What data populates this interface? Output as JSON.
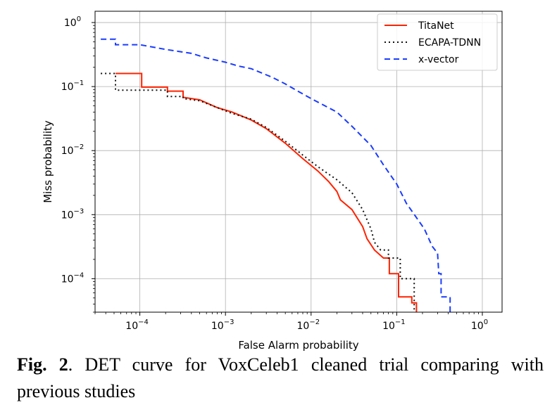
{
  "chart_data": {
    "type": "line",
    "xlabel": "False Alarm probability",
    "ylabel": "Miss probability",
    "xscale": "log",
    "yscale": "log",
    "xlim": [
      3e-05,
      1.7
    ],
    "ylim": [
      3e-05,
      1.5
    ],
    "x_ticks": [
      {
        "value": 0.0001,
        "base": "10",
        "exp": "−4"
      },
      {
        "value": 0.001,
        "base": "10",
        "exp": "−3"
      },
      {
        "value": 0.01,
        "base": "10",
        "exp": "−2"
      },
      {
        "value": 0.1,
        "base": "10",
        "exp": "−1"
      },
      {
        "value": 1,
        "base": "10",
        "exp": "0"
      }
    ],
    "y_ticks": [
      {
        "value": 1,
        "base": "10",
        "exp": "0"
      },
      {
        "value": 0.1,
        "base": "10",
        "exp": "−1"
      },
      {
        "value": 0.01,
        "base": "10",
        "exp": "−2"
      },
      {
        "value": 0.001,
        "base": "10",
        "exp": "−3"
      },
      {
        "value": 0.0001,
        "base": "10",
        "exp": "−4"
      }
    ],
    "grid": true,
    "legend_position": "top-right",
    "series": [
      {
        "name": "TitaNet",
        "color": "#ff2200",
        "style": "solid",
        "points": [
          [
            5.2e-05,
            0.16
          ],
          [
            0.000105,
            0.16
          ],
          [
            0.000105,
            0.098
          ],
          [
            0.00021,
            0.098
          ],
          [
            0.00021,
            0.085
          ],
          [
            0.00032,
            0.085
          ],
          [
            0.00032,
            0.068
          ],
          [
            0.0005,
            0.062
          ],
          [
            0.0008,
            0.047
          ],
          [
            0.0012,
            0.04
          ],
          [
            0.002,
            0.03
          ],
          [
            0.003,
            0.022
          ],
          [
            0.005,
            0.013
          ],
          [
            0.008,
            0.0075
          ],
          [
            0.012,
            0.0048
          ],
          [
            0.016,
            0.0033
          ],
          [
            0.02,
            0.0023
          ],
          [
            0.022,
            0.0017
          ],
          [
            0.03,
            0.0012
          ],
          [
            0.04,
            0.00065
          ],
          [
            0.045,
            0.00042
          ],
          [
            0.055,
            0.00028
          ],
          [
            0.07,
            0.00021
          ],
          [
            0.082,
            0.00021
          ],
          [
            0.082,
            0.00012
          ],
          [
            0.105,
            0.00012
          ],
          [
            0.105,
            5.2e-05
          ],
          [
            0.15,
            5.2e-05
          ],
          [
            0.15,
            4.2e-05
          ],
          [
            0.17,
            4.2e-05
          ],
          [
            0.17,
            3e-05
          ]
        ]
      },
      {
        "name": "ECAPA-TDNN",
        "color": "#111111",
        "style": "dotted",
        "points": [
          [
            3.5e-05,
            0.16
          ],
          [
            5.2e-05,
            0.16
          ],
          [
            5.2e-05,
            0.088
          ],
          [
            0.00021,
            0.088
          ],
          [
            0.00021,
            0.07
          ],
          [
            0.00032,
            0.07
          ],
          [
            0.00032,
            0.065
          ],
          [
            0.0005,
            0.06
          ],
          [
            0.0008,
            0.047
          ],
          [
            0.0012,
            0.038
          ],
          [
            0.002,
            0.031
          ],
          [
            0.003,
            0.023
          ],
          [
            0.005,
            0.014
          ],
          [
            0.008,
            0.0085
          ],
          [
            0.012,
            0.0056
          ],
          [
            0.02,
            0.0035
          ],
          [
            0.03,
            0.0022
          ],
          [
            0.04,
            0.0012
          ],
          [
            0.05,
            0.0006
          ],
          [
            0.055,
            0.00037
          ],
          [
            0.065,
            0.00028
          ],
          [
            0.08,
            0.00028
          ],
          [
            0.08,
            0.00021
          ],
          [
            0.11,
            0.00021
          ],
          [
            0.11,
            0.0001
          ],
          [
            0.16,
            0.0001
          ],
          [
            0.16,
            3e-05
          ]
        ]
      },
      {
        "name": "x-vector",
        "color": "#1a3cff",
        "style": "dashed",
        "points": [
          [
            3.5e-05,
            0.55
          ],
          [
            5.2e-05,
            0.55
          ],
          [
            5.2e-05,
            0.45
          ],
          [
            0.0001,
            0.45
          ],
          [
            0.0002,
            0.38
          ],
          [
            0.0004,
            0.33
          ],
          [
            0.0006,
            0.28
          ],
          [
            0.001,
            0.24
          ],
          [
            0.0014,
            0.21
          ],
          [
            0.002,
            0.19
          ],
          [
            0.0035,
            0.14
          ],
          [
            0.005,
            0.11
          ],
          [
            0.007,
            0.085
          ],
          [
            0.01,
            0.065
          ],
          [
            0.02,
            0.04
          ],
          [
            0.03,
            0.024
          ],
          [
            0.05,
            0.012
          ],
          [
            0.07,
            0.006
          ],
          [
            0.1,
            0.003
          ],
          [
            0.13,
            0.0015
          ],
          [
            0.17,
            0.0009
          ],
          [
            0.21,
            0.0006
          ],
          [
            0.26,
            0.00032
          ],
          [
            0.3,
            0.00025
          ],
          [
            0.31,
            0.00012
          ],
          [
            0.33,
            0.00012
          ],
          [
            0.33,
            5.2e-05
          ],
          [
            0.42,
            5.2e-05
          ],
          [
            0.42,
            3e-05
          ]
        ]
      }
    ]
  },
  "caption": {
    "label": "Fig. 2",
    "text": ".  DET curve for VoxCeleb1 cleaned trial comparing with previous studies"
  }
}
